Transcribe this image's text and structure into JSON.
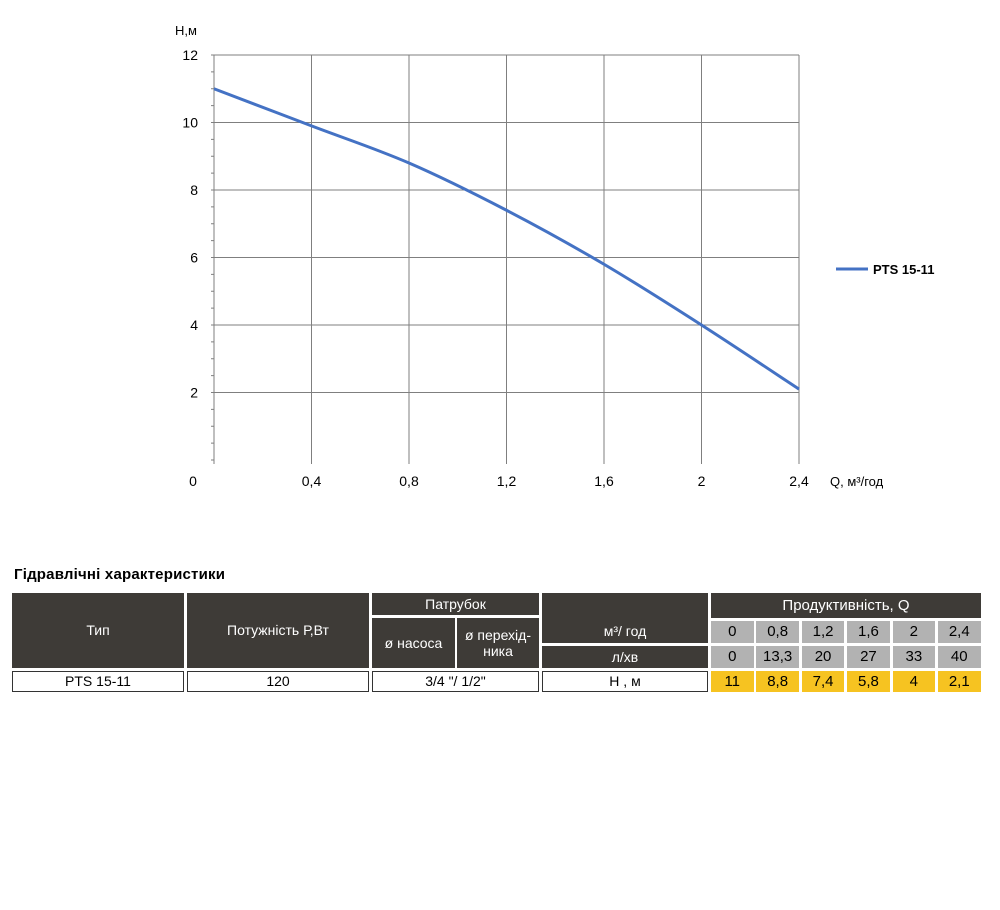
{
  "chart_data": {
    "type": "line",
    "x": [
      0,
      0.4,
      0.8,
      1.2,
      1.6,
      2,
      2.4
    ],
    "series": [
      {
        "name": "PTS 15-11",
        "values": [
          11,
          9.9,
          8.8,
          7.4,
          5.8,
          4,
          2.1
        ],
        "color": "#4472c4"
      }
    ],
    "xlabel": "Q,  м³/год",
    "ylabel": "Н,м",
    "xlim": [
      0,
      2.4
    ],
    "ylim": [
      0,
      12
    ],
    "x_ticks": [
      "0",
      "0,4",
      "0,8",
      "1,2",
      "1,6",
      "2",
      "2,4"
    ],
    "y_ticks": [
      "2",
      "4",
      "6",
      "8",
      "10",
      "12"
    ],
    "grid": true,
    "legend_position": "right"
  },
  "table": {
    "title": "Гідравлічні характеристики",
    "headers": {
      "type": "Тип",
      "power": "Потужність  Р,Вт",
      "fitting": "Патрубок",
      "pump_diameter": "ø насоса",
      "adapter_diameter": "ø перехід-\nника",
      "flow": "Продуктивність, Q"
    },
    "units": [
      "м³/ год",
      "л/хв"
    ],
    "flow_m3h": [
      "0",
      "0,8",
      "1,2",
      "1,6",
      "2",
      "2,4"
    ],
    "flow_lmin": [
      "0",
      "13,3",
      "20",
      "27",
      "33",
      "40"
    ],
    "row": {
      "type": "PTS 15-11",
      "power": "120",
      "fitting": "3/4 \"/ 1/2\"",
      "head_label": "Н , м",
      "head_values": [
        "11",
        "8,8",
        "7,4",
        "5,8",
        "4",
        "2,1"
      ]
    }
  }
}
